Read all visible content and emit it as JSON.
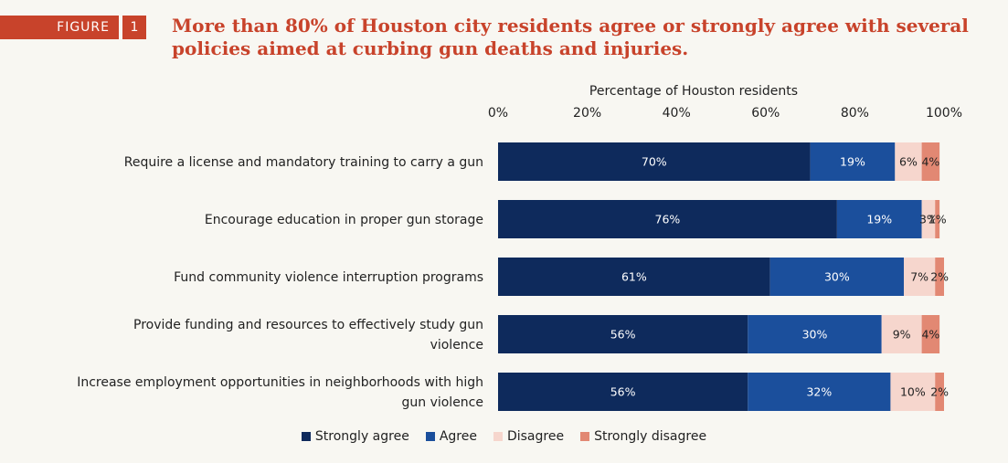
{
  "figure": {
    "label": "FIGURE",
    "number": "1"
  },
  "title": "More than 80% of Houston city residents agree or strongly agree with several policies aimed at curbing gun deaths and injuries.",
  "chart_data": {
    "type": "bar",
    "orientation": "horizontal",
    "stacked": true,
    "xlabel": "Percentage of Houston residents",
    "xlim": [
      0,
      100
    ],
    "ticks": [
      "0%",
      "20%",
      "40%",
      "60%",
      "80%",
      "100%"
    ],
    "tick_values": [
      0,
      20,
      40,
      60,
      80,
      100
    ],
    "categories": [
      "Require a license and mandatory training to carry a gun",
      "Encourage education in proper gun storage",
      "Fund community violence interruption programs",
      "Provide funding and resources to effectively study gun violence",
      "Increase employment opportunities in neighborhoods with high gun violence"
    ],
    "series": [
      {
        "name": "Strongly agree",
        "color": "#0e2a5c",
        "label_color": "#ffffff",
        "values": [
          70,
          76,
          61,
          56,
          56
        ],
        "labels": [
          "70%",
          "76%",
          "61%",
          "56%",
          "56%"
        ]
      },
      {
        "name": "Agree",
        "color": "#1b4f9c",
        "label_color": "#ffffff",
        "values": [
          19,
          19,
          30,
          30,
          32
        ],
        "labels": [
          "19%",
          "19%",
          "30%",
          "30%",
          "32%"
        ]
      },
      {
        "name": "Disagree",
        "color": "#f6d6cd",
        "label_color": "#222222",
        "values": [
          6,
          3,
          7,
          9,
          10
        ],
        "labels": [
          "6%",
          "3%",
          "7%",
          "9%",
          "10%"
        ]
      },
      {
        "name": "Strongly disagree",
        "color": "#e28873",
        "label_color": "#222222",
        "values": [
          4,
          1,
          2,
          4,
          2
        ],
        "labels": [
          "4%",
          "1%",
          "2%",
          "4%",
          "2%"
        ]
      }
    ]
  }
}
